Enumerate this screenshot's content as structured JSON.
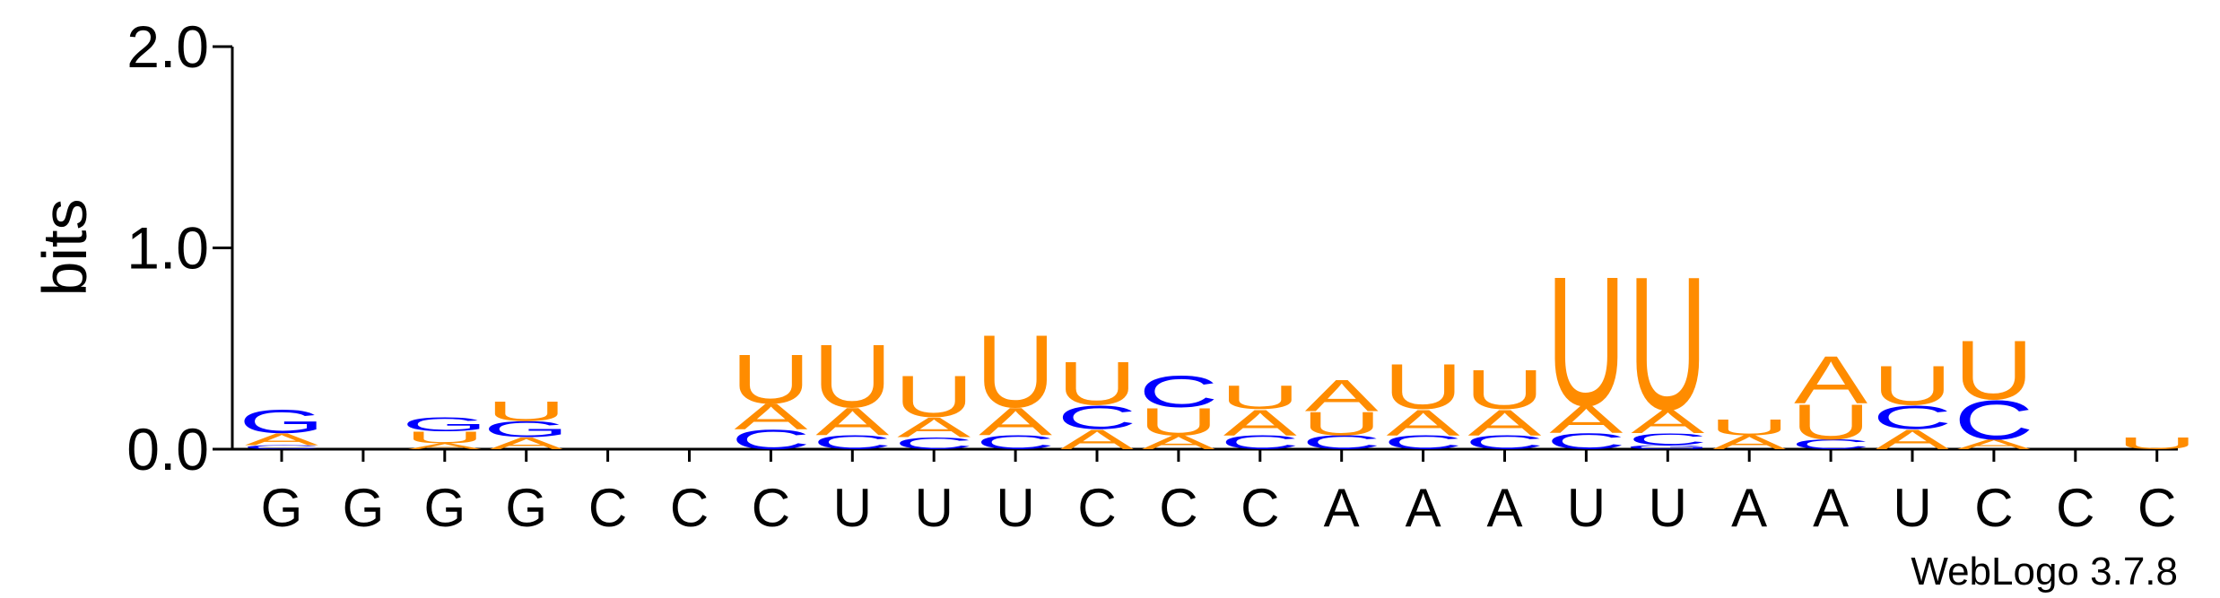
{
  "chart_data": {
    "type": "logo",
    "y_label": "bits",
    "ylim": [
      0,
      2
    ],
    "yticks": [
      {
        "value": 0,
        "label": "0.0"
      },
      {
        "value": 1,
        "label": "1.0"
      },
      {
        "value": 2,
        "label": "2.0"
      }
    ],
    "categories": [
      "G",
      "G",
      "G",
      "G",
      "C",
      "C",
      "C",
      "U",
      "U",
      "U",
      "C",
      "C",
      "C",
      "A",
      "A",
      "A",
      "U",
      "U",
      "A",
      "A",
      "U",
      "C",
      "C",
      "C"
    ],
    "colors": {
      "A": "#ff8c00",
      "U": "#ff8c00",
      "C": "#0000ff",
      "G": "#0000ff"
    },
    "columns": [
      [
        {
          "letter": "C",
          "value": 0.02
        },
        {
          "letter": "A",
          "value": 0.06
        },
        {
          "letter": "G",
          "value": 0.12
        }
      ],
      [],
      [
        {
          "letter": "A",
          "value": 0.03
        },
        {
          "letter": "U",
          "value": 0.06
        },
        {
          "letter": "G",
          "value": 0.07
        }
      ],
      [
        {
          "letter": "A",
          "value": 0.06
        },
        {
          "letter": "G",
          "value": 0.08
        },
        {
          "letter": "U",
          "value": 0.1
        }
      ],
      [],
      [],
      [
        {
          "letter": "C",
          "value": 0.1
        },
        {
          "letter": "A",
          "value": 0.13
        },
        {
          "letter": "U",
          "value": 0.25
        }
      ],
      [
        {
          "letter": "C",
          "value": 0.07
        },
        {
          "letter": "A",
          "value": 0.14
        },
        {
          "letter": "U",
          "value": 0.32
        }
      ],
      [
        {
          "letter": "C",
          "value": 0.06
        },
        {
          "letter": "A",
          "value": 0.1
        },
        {
          "letter": "U",
          "value": 0.21
        }
      ],
      [
        {
          "letter": "C",
          "value": 0.07
        },
        {
          "letter": "A",
          "value": 0.14
        },
        {
          "letter": "U",
          "value": 0.37
        }
      ],
      [
        {
          "letter": "A",
          "value": 0.1
        },
        {
          "letter": "C",
          "value": 0.12
        },
        {
          "letter": "U",
          "value": 0.22
        }
      ],
      [
        {
          "letter": "A",
          "value": 0.07
        },
        {
          "letter": "U",
          "value": 0.14
        },
        {
          "letter": "C",
          "value": 0.16
        }
      ],
      [
        {
          "letter": "C",
          "value": 0.07
        },
        {
          "letter": "A",
          "value": 0.13
        },
        {
          "letter": "U",
          "value": 0.12
        }
      ],
      [
        {
          "letter": "C",
          "value": 0.07
        },
        {
          "letter": "U",
          "value": 0.12
        },
        {
          "letter": "A",
          "value": 0.16
        }
      ],
      [
        {
          "letter": "C",
          "value": 0.07
        },
        {
          "letter": "A",
          "value": 0.13
        },
        {
          "letter": "U",
          "value": 0.23
        }
      ],
      [
        {
          "letter": "C",
          "value": 0.07
        },
        {
          "letter": "A",
          "value": 0.13
        },
        {
          "letter": "U",
          "value": 0.2
        }
      ],
      [
        {
          "letter": "C",
          "value": 0.08
        },
        {
          "letter": "A",
          "value": 0.14
        },
        {
          "letter": "U",
          "value": 0.66
        }
      ],
      [
        {
          "letter": "G",
          "value": 0.02
        },
        {
          "letter": "C",
          "value": 0.06
        },
        {
          "letter": "A",
          "value": 0.12
        },
        {
          "letter": "U",
          "value": 0.68
        }
      ],
      [
        {
          "letter": "A",
          "value": 0.07
        },
        {
          "letter": "U",
          "value": 0.08
        }
      ],
      [
        {
          "letter": "C",
          "value": 0.05
        },
        {
          "letter": "U",
          "value": 0.18
        },
        {
          "letter": "A",
          "value": 0.24
        }
      ],
      [
        {
          "letter": "A",
          "value": 0.1
        },
        {
          "letter": "C",
          "value": 0.12
        },
        {
          "letter": "U",
          "value": 0.2
        }
      ],
      [
        {
          "letter": "A",
          "value": 0.05
        },
        {
          "letter": "C",
          "value": 0.2
        },
        {
          "letter": "U",
          "value": 0.3
        }
      ],
      [],
      [
        {
          "letter": "U",
          "value": 0.06
        }
      ]
    ],
    "footer": "WebLogo 3.7.8"
  }
}
